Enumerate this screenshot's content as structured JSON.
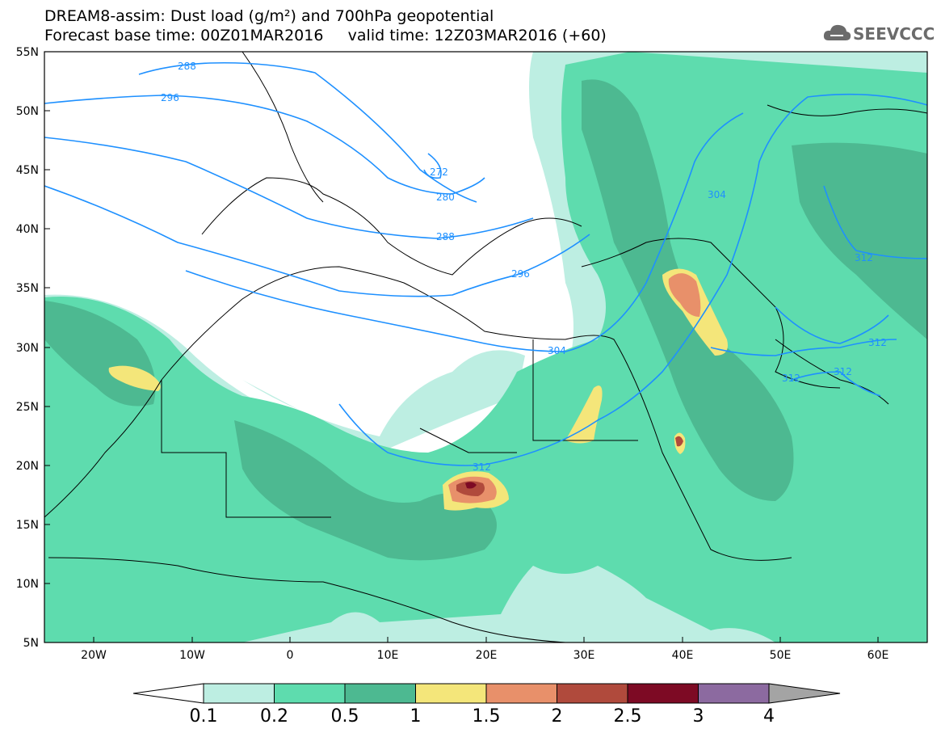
{
  "header": {
    "title_line1": "DREAM8-assim: Dust load (g/m²) and 700hPa geopotential",
    "title_line2": "Forecast base time: 00Z01MAR2016     valid time: 12Z03MAR2016 (+60)",
    "logo_text": "SEEVCCC"
  },
  "map": {
    "lon_range": [
      -25,
      65
    ],
    "lat_range": [
      5,
      55
    ],
    "lat_ticks": [
      "55N",
      "50N",
      "45N",
      "40N",
      "35N",
      "30N",
      "25N",
      "20N",
      "15N",
      "10N",
      "5N"
    ],
    "lon_ticks": [
      "20W",
      "10W",
      "0",
      "10E",
      "20E",
      "30E",
      "40E",
      "50E",
      "60E"
    ],
    "contour_labels": [
      "288",
      "296",
      "272",
      "280",
      "288",
      "296",
      "304",
      "304",
      "312",
      "312",
      "312",
      "312",
      "312"
    ]
  },
  "colorbar": {
    "labels": [
      "0.1",
      "0.2",
      "0.5",
      "1",
      "1.5",
      "2",
      "2.5",
      "3",
      "4"
    ],
    "colors": [
      "#ffffff",
      "#bdeee2",
      "#5edcae",
      "#4db991",
      "#f4e67a",
      "#e8906a",
      "#b04a3c",
      "#7d0a24",
      "#8c6aa0",
      "#a4a4a4"
    ]
  }
}
